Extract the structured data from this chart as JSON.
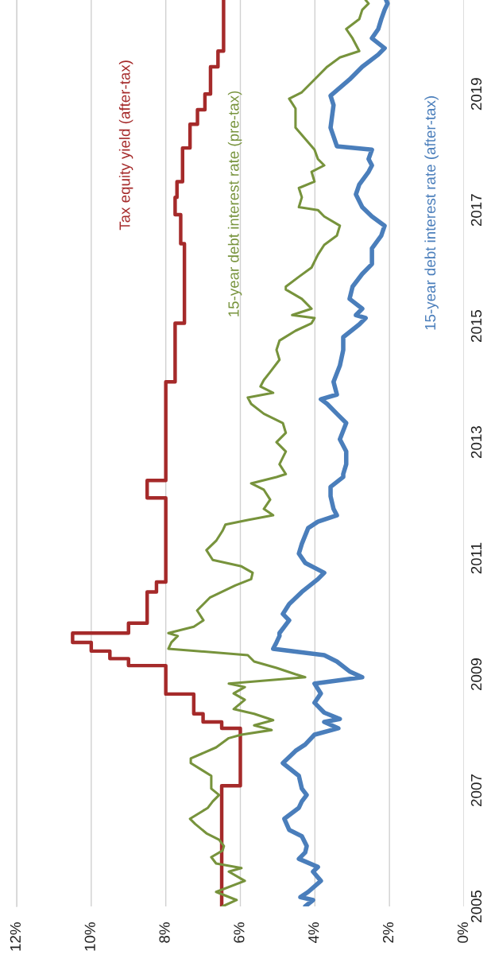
{
  "chart_data": {
    "type": "line",
    "ylim": [
      2005,
      2020.62
    ],
    "yticks": [
      2005,
      2007,
      2009,
      2011,
      2013,
      2015,
      2017,
      2019
    ],
    "xlim": [
      12,
      0
    ],
    "xticks": [
      {
        "value": 0,
        "label": "0%"
      },
      {
        "value": 2,
        "label": "2%"
      },
      {
        "value": 4,
        "label": "4%"
      },
      {
        "value": 6,
        "label": "6%"
      },
      {
        "value": 8,
        "label": "8%"
      },
      {
        "value": 10,
        "label": "10%"
      },
      {
        "value": 12,
        "label": "12%"
      }
    ],
    "grid": "x",
    "series": [
      {
        "name": "Tax equity yield (after-tax)",
        "type": "step",
        "color": "#a52a2a",
        "values": [
          2005.0,
          2007.08,
          2008.07,
          2008.18,
          2008.32,
          2008.66,
          2009.15,
          2009.27,
          2009.4,
          2009.55,
          2009.71,
          2009.88,
          2010.42,
          2010.59,
          2012.04,
          2012.34,
          2014.04,
          2015.05,
          2016.42,
          2016.92,
          2017.22,
          2017.49,
          2018.07,
          2018.48,
          2018.73,
          2019.0,
          2019.47,
          2019.74,
          2020.62
        ],
        "x": [
          6.5,
          6.0,
          6.5,
          7.0,
          7.25,
          8.0,
          9.0,
          9.5,
          10.0,
          10.5,
          9.0,
          8.5,
          8.25,
          8.0,
          8.5,
          8.0,
          7.75,
          7.5,
          7.6,
          7.75,
          7.7,
          7.55,
          7.35,
          7.15,
          6.95,
          6.8,
          6.6,
          6.45,
          6.45
        ]
      },
      {
        "name": "15-year debt interest rate (pre-tax)",
        "color": "#77933c",
        "values": [
          2005.0,
          2005.11,
          2005.25,
          2005.44,
          2005.6,
          2005.66,
          2005.74,
          2005.85,
          2005.96,
          2006.04,
          2006.15,
          2006.26,
          2006.42,
          2006.51,
          2006.7,
          2006.81,
          2006.92,
          2007.03,
          2007.25,
          2007.47,
          2007.55,
          2007.74,
          2007.9,
          2007.96,
          2008.04,
          2008.12,
          2008.21,
          2008.32,
          2008.4,
          2008.56,
          2008.67,
          2008.78,
          2008.84,
          2008.95,
          2009.0,
          2009.11,
          2009.22,
          2009.33,
          2009.44,
          2009.55,
          2009.66,
          2009.71,
          2009.82,
          2009.93,
          2010.1,
          2010.32,
          2010.53,
          2010.64,
          2010.75,
          2010.86,
          2010.97,
          2011.14,
          2011.3,
          2011.47,
          2011.58,
          2011.66,
          2011.74,
          2011.85,
          2012.01,
          2012.18,
          2012.29,
          2012.4,
          2012.45,
          2012.62,
          2012.84,
          2013.0,
          2013.16,
          2013.33,
          2013.49,
          2013.66,
          2013.77,
          2013.85,
          2013.96,
          2014.07,
          2014.21,
          2014.42,
          2014.59,
          2014.75,
          2014.92,
          2015.05,
          2015.14,
          2015.19,
          2015.3,
          2015.47,
          2015.63,
          2015.68,
          2015.85,
          2016.01,
          2016.23,
          2016.4,
          2016.56,
          2016.73,
          2016.89,
          2017.0,
          2017.05,
          2017.22,
          2017.38,
          2017.49,
          2017.66,
          2017.77,
          2017.88,
          2018.04,
          2018.42,
          2018.75,
          2018.92,
          2019.03,
          2019.25,
          2019.47,
          2019.63,
          2019.74,
          2019.96,
          2020.12,
          2020.29,
          2020.45,
          2020.56,
          2020.62
        ],
        "x": [
          6.48,
          6.1,
          6.65,
          5.88,
          6.31,
          5.97,
          6.65,
          6.78,
          6.48,
          6.44,
          6.57,
          6.91,
          7.21,
          7.35,
          6.87,
          6.74,
          6.57,
          6.78,
          6.78,
          7.33,
          7.33,
          6.65,
          6.31,
          5.97,
          5.16,
          5.63,
          5.12,
          5.63,
          6.18,
          5.88,
          6.18,
          5.88,
          6.31,
          4.26,
          4.52,
          5.03,
          5.63,
          5.8,
          7.93,
          7.85,
          7.68,
          7.93,
          7.25,
          6.99,
          7.16,
          6.82,
          6.14,
          5.71,
          5.67,
          5.97,
          6.74,
          6.91,
          6.65,
          6.48,
          6.4,
          5.8,
          5.12,
          5.37,
          5.2,
          5.37,
          5.71,
          5.03,
          4.78,
          4.95,
          4.78,
          5.03,
          4.78,
          4.86,
          5.37,
          5.71,
          5.8,
          5.12,
          5.46,
          5.37,
          5.2,
          4.95,
          5.03,
          4.95,
          4.52,
          4.09,
          4.01,
          4.61,
          4.09,
          4.35,
          4.78,
          4.78,
          4.43,
          4.09,
          3.92,
          3.75,
          3.41,
          3.33,
          3.75,
          3.92,
          4.43,
          4.35,
          4.43,
          4.01,
          4.09,
          3.75,
          3.92,
          4.01,
          4.52,
          4.52,
          4.69,
          4.35,
          4.01,
          3.67,
          3.33,
          2.81,
          2.99,
          3.16,
          2.81,
          2.73,
          2.56,
          2.64
        ]
      },
      {
        "name": "15-year debt interest rate (after-tax)",
        "color": "#4a7ebb",
        "values": [
          2005.0,
          2005.11,
          2005.16,
          2005.25,
          2005.44,
          2005.6,
          2005.68,
          2005.82,
          2005.93,
          2006.04,
          2006.21,
          2006.32,
          2006.51,
          2006.7,
          2006.81,
          2006.92,
          2007.03,
          2007.25,
          2007.47,
          2007.68,
          2007.79,
          2007.96,
          2008.07,
          2008.18,
          2008.23,
          2008.34,
          2008.51,
          2008.67,
          2008.84,
          2008.95,
          2009.05,
          2009.22,
          2009.33,
          2009.44,
          2009.55,
          2009.66,
          2009.71,
          2009.93,
          2010.04,
          2010.21,
          2010.42,
          2010.64,
          2010.75,
          2010.92,
          2011.08,
          2011.25,
          2011.52,
          2011.63,
          2011.74,
          2011.85,
          2012.07,
          2012.23,
          2012.4,
          2012.45,
          2012.62,
          2012.84,
          2013.05,
          2013.33,
          2013.49,
          2013.66,
          2013.74,
          2013.82,
          2014.04,
          2014.32,
          2014.59,
          2014.81,
          2015.03,
          2015.14,
          2015.19,
          2015.3,
          2015.47,
          2015.68,
          2015.9,
          2016.07,
          2016.34,
          2016.56,
          2016.73,
          2016.89,
          2017.05,
          2017.27,
          2017.44,
          2017.66,
          2017.77,
          2017.88,
          2018.04,
          2018.1,
          2018.42,
          2018.81,
          2018.97,
          2019.25,
          2019.47,
          2019.68,
          2019.79,
          2019.96,
          2020.12,
          2020.29,
          2020.45,
          2020.56,
          2020.62
        ],
        "x": [
          4.26,
          4.05,
          4.39,
          4.18,
          3.84,
          4.05,
          3.92,
          4.43,
          4.26,
          4.22,
          4.35,
          4.69,
          4.82,
          4.43,
          4.35,
          4.22,
          4.35,
          4.43,
          4.86,
          4.52,
          4.26,
          4.01,
          3.37,
          3.75,
          3.33,
          3.75,
          4.01,
          3.84,
          4.01,
          2.73,
          3.07,
          3.41,
          3.75,
          5.12,
          5.03,
          4.95,
          4.95,
          4.69,
          4.86,
          4.69,
          4.35,
          3.92,
          3.75,
          4.26,
          4.43,
          4.35,
          4.18,
          3.92,
          3.41,
          3.5,
          3.58,
          3.58,
          3.24,
          3.24,
          3.16,
          3.16,
          3.33,
          3.16,
          3.41,
          3.67,
          3.84,
          3.41,
          3.5,
          3.33,
          3.24,
          3.24,
          2.81,
          2.64,
          2.9,
          2.73,
          3.07,
          2.99,
          2.73,
          2.47,
          2.47,
          2.22,
          2.13,
          2.47,
          2.73,
          2.9,
          2.81,
          2.56,
          2.47,
          2.56,
          2.47,
          3.41,
          3.58,
          3.5,
          3.58,
          3.07,
          2.73,
          2.3,
          2.13,
          2.47,
          2.3,
          2.22,
          2.13,
          2.05,
          2.09
        ]
      }
    ]
  }
}
